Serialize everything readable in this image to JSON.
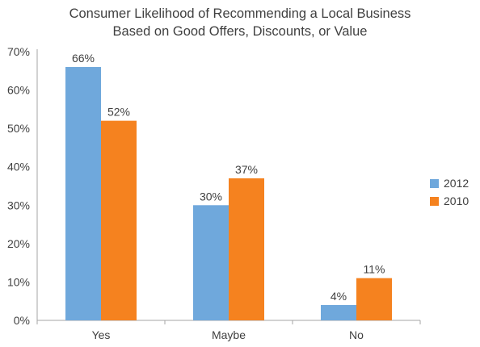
{
  "chart_data": {
    "type": "bar",
    "title_lines": [
      "Consumer Likelihood of Recommending a Local Business",
      "Based on Good Offers, Discounts, or Value"
    ],
    "categories": [
      "Yes",
      "Maybe",
      "No"
    ],
    "series": [
      {
        "name": "2012",
        "values": [
          66,
          30,
          4
        ],
        "color": "#6fa8dc"
      },
      {
        "name": "2010",
        "values": [
          52,
          37,
          11
        ],
        "color": "#f5821f"
      }
    ],
    "value_suffix": "%",
    "ylim": [
      0,
      70
    ],
    "yticks": [
      "0%",
      "10%",
      "20%",
      "30%",
      "40%",
      "50%",
      "60%",
      "70%"
    ],
    "grid": false,
    "legend_position": "right"
  }
}
